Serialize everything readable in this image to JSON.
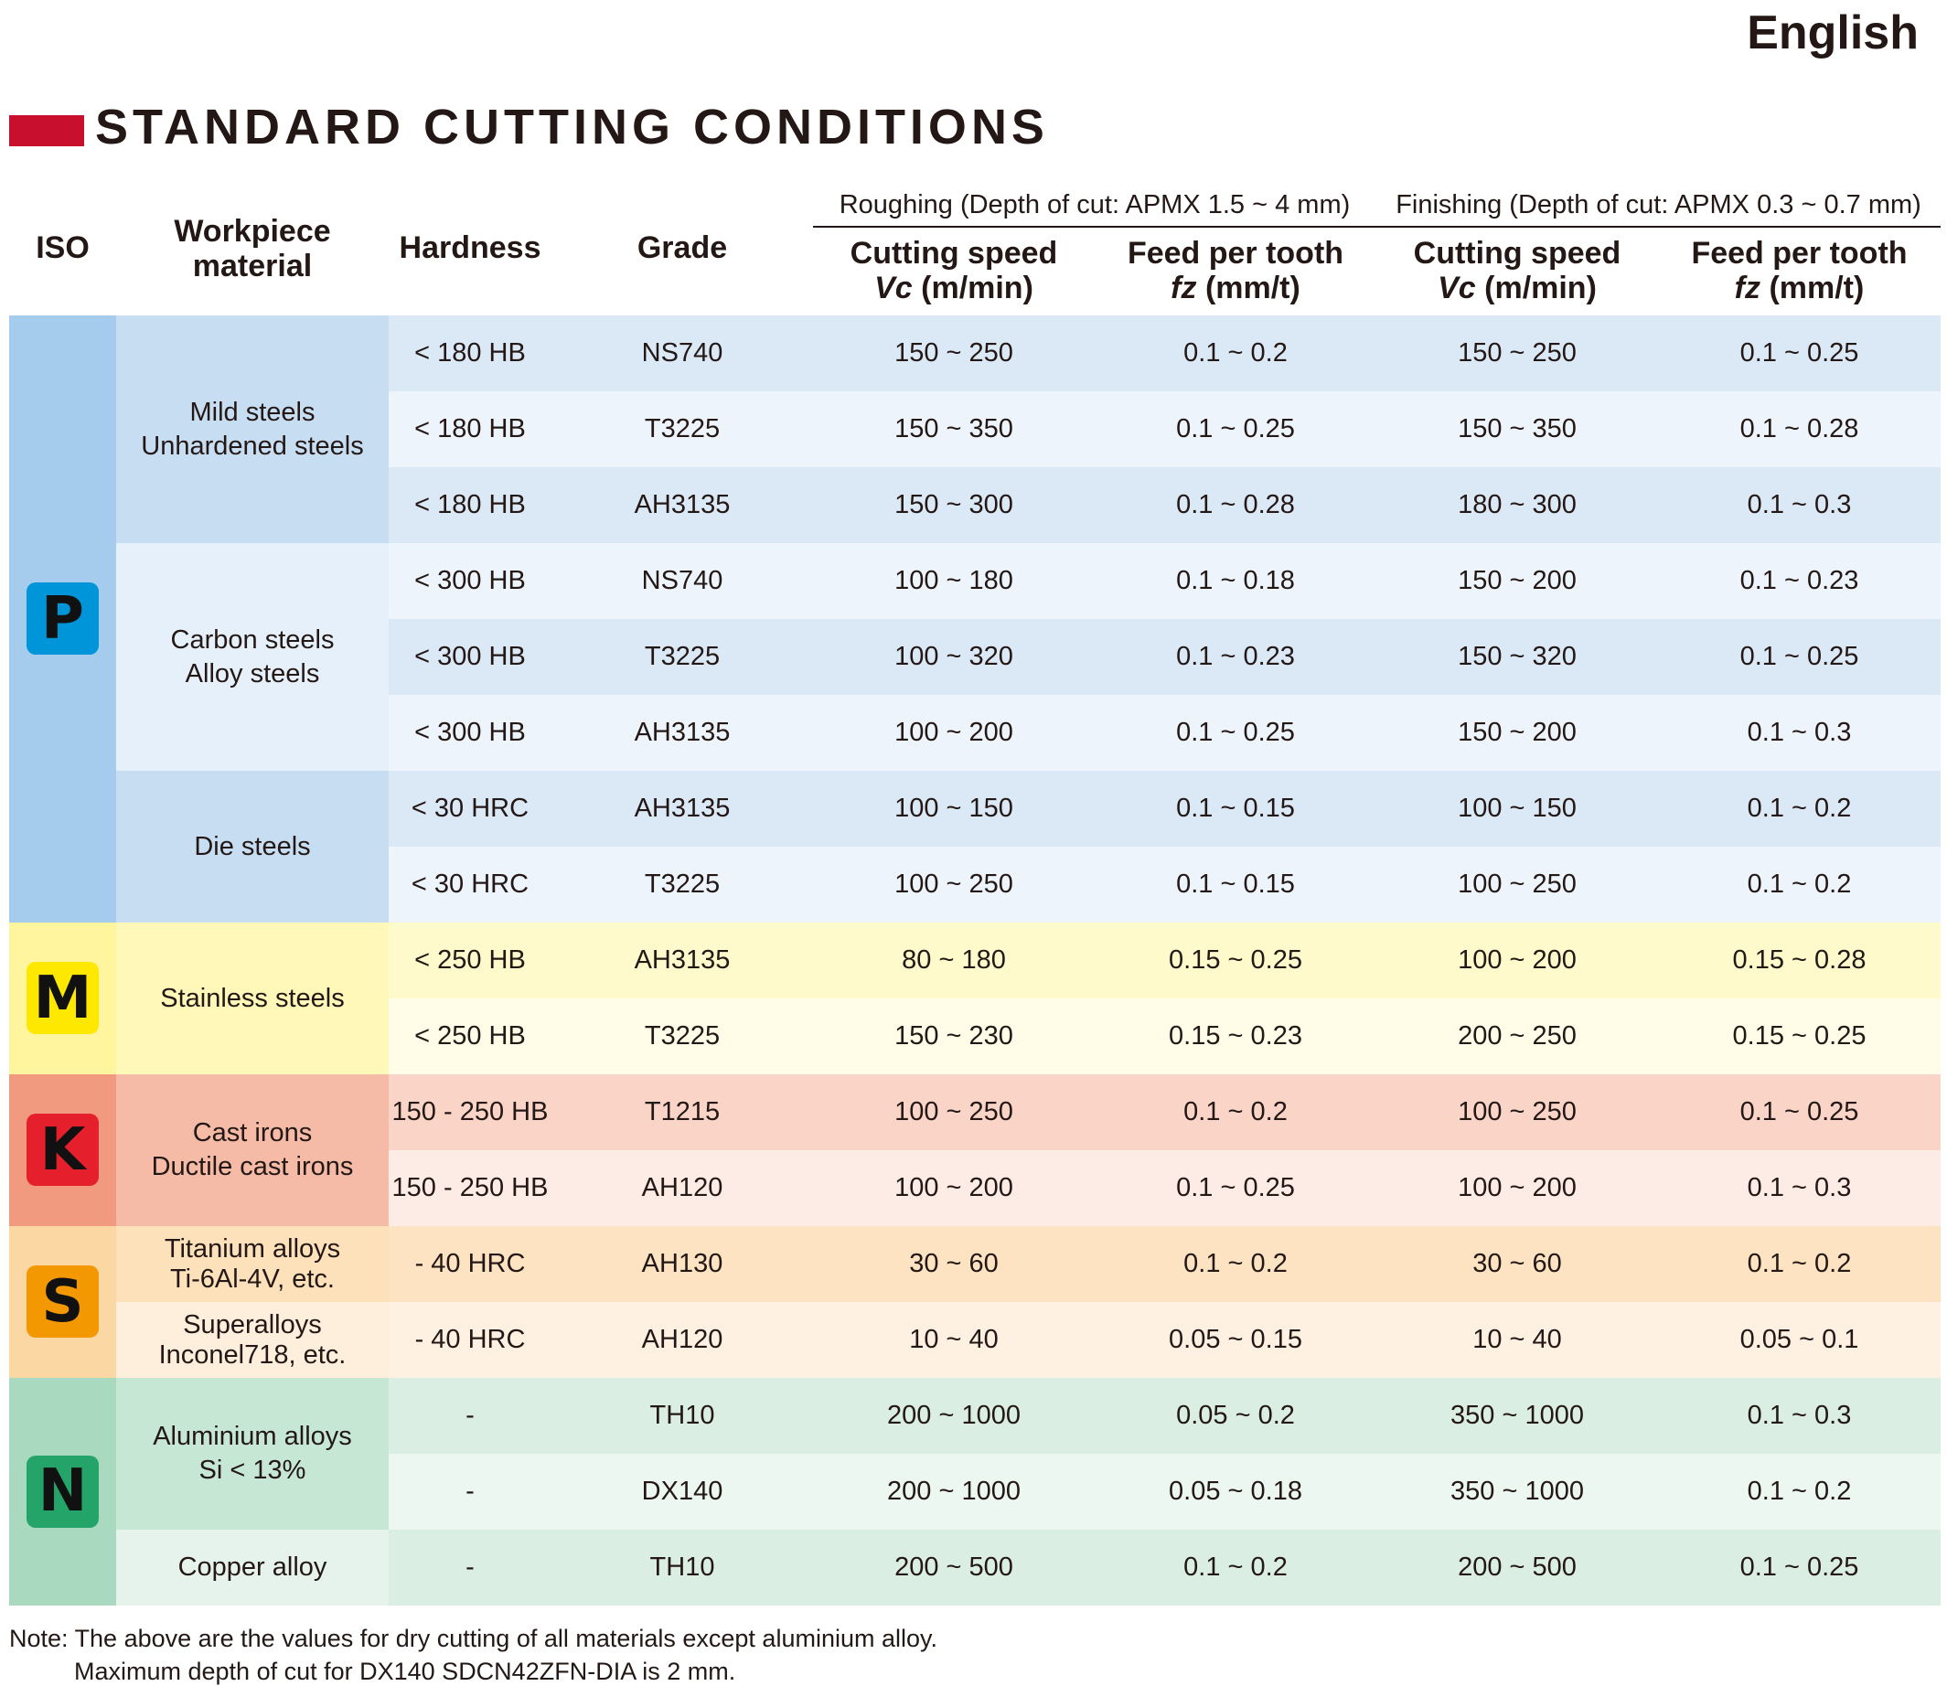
{
  "language": "English",
  "title": "STANDARD CUTTING CONDITIONS",
  "header": {
    "iso": "ISO",
    "workpiece": "Workpiece\nmaterial",
    "hardness": "Hardness",
    "grade": "Grade",
    "roughing": "Roughing (Depth of cut: APMX 1.5 ~ 4 mm)",
    "finishing": "Finishing (Depth of cut: APMX 0.3 ~ 0.7 mm)",
    "cs_line1": "Cutting speed",
    "cs_line2_sym": "Vc",
    "cs_line2_unit": " (m/min)",
    "fz_line1": "Feed per tooth",
    "fz_line2_sym": "fz",
    "fz_line2_unit": " (mm/t)"
  },
  "colors": {
    "P": {
      "badge": "#0094d8",
      "iso": "#a5ccec",
      "mat": "#c7ddf2",
      "mat_alt": "#e6f0fa",
      "row_dark": "#dbe8f6",
      "row_light": "#edf4fb"
    },
    "M": {
      "badge": "#ffe800",
      "iso": "#fff59f",
      "mat": "#fff8b9",
      "row_dark": "#fffacb",
      "row_light": "#fffde8"
    },
    "K": {
      "badge": "#e5202c",
      "iso": "#f19a80",
      "mat": "#f6bba6",
      "row_dark": "#fad5c7",
      "row_light": "#fdece5"
    },
    "S": {
      "badge": "#f39800",
      "iso": "#fbd7a4",
      "mat": "#fde1bb",
      "mat_alt": "#feefdc",
      "row_dark": "#fde3c2",
      "row_light": "#fef1e2"
    },
    "N": {
      "badge": "#24a469",
      "iso": "#a9d9bf",
      "mat": "#c6e7d4",
      "mat_alt": "#e6f3ec",
      "row_dark": "#dbeee3",
      "row_light": "#edf7f1"
    }
  },
  "groups": [
    {
      "iso": "P",
      "materials": [
        {
          "name": "Mild steels\nUnhardened steels",
          "rows": [
            {
              "hardness": "< 180 HB",
              "grade": "NS740",
              "r_vc": "150 ~ 250",
              "r_fz": "0.1 ~ 0.2",
              "f_vc": "150 ~ 250",
              "f_fz": "0.1 ~ 0.25"
            },
            {
              "hardness": "< 180 HB",
              "grade": "T3225",
              "r_vc": "150 ~ 350",
              "r_fz": "0.1 ~ 0.25",
              "f_vc": "150 ~ 350",
              "f_fz": "0.1 ~ 0.28"
            },
            {
              "hardness": "< 180 HB",
              "grade": "AH3135",
              "r_vc": "150 ~ 300",
              "r_fz": "0.1 ~ 0.28",
              "f_vc": "180 ~ 300",
              "f_fz": "0.1 ~ 0.3"
            }
          ]
        },
        {
          "name": "Carbon steels\nAlloy steels",
          "rows": [
            {
              "hardness": "< 300 HB",
              "grade": "NS740",
              "r_vc": "100 ~ 180",
              "r_fz": "0.1 ~ 0.18",
              "f_vc": "150 ~ 200",
              "f_fz": "0.1 ~ 0.23"
            },
            {
              "hardness": "< 300 HB",
              "grade": "T3225",
              "r_vc": "100 ~ 320",
              "r_fz": "0.1 ~ 0.23",
              "f_vc": "150 ~ 320",
              "f_fz": "0.1 ~ 0.25"
            },
            {
              "hardness": "< 300 HB",
              "grade": "AH3135",
              "r_vc": "100 ~ 200",
              "r_fz": "0.1 ~ 0.25",
              "f_vc": "150 ~ 200",
              "f_fz": "0.1 ~ 0.3"
            }
          ]
        },
        {
          "name": "Die steels",
          "rows": [
            {
              "hardness": "< 30 HRC",
              "grade": "AH3135",
              "r_vc": "100 ~ 150",
              "r_fz": "0.1 ~ 0.15",
              "f_vc": "100 ~ 150",
              "f_fz": "0.1 ~ 0.2"
            },
            {
              "hardness": "< 30 HRC",
              "grade": "T3225",
              "r_vc": "100 ~ 250",
              "r_fz": "0.1 ~ 0.15",
              "f_vc": "100 ~ 250",
              "f_fz": "0.1 ~ 0.2"
            }
          ]
        }
      ]
    },
    {
      "iso": "M",
      "materials": [
        {
          "name": "Stainless steels",
          "rows": [
            {
              "hardness": "< 250 HB",
              "grade": "AH3135",
              "r_vc": "80 ~ 180",
              "r_fz": "0.15 ~ 0.25",
              "f_vc": "100 ~ 200",
              "f_fz": "0.15 ~ 0.28"
            },
            {
              "hardness": "< 250 HB",
              "grade": "T3225",
              "r_vc": "150 ~ 230",
              "r_fz": "0.15 ~ 0.23",
              "f_vc": "200 ~ 250",
              "f_fz": "0.15 ~ 0.25"
            }
          ]
        }
      ]
    },
    {
      "iso": "K",
      "materials": [
        {
          "name": "Cast irons\nDuctile cast irons",
          "rows": [
            {
              "hardness": "150 - 250 HB",
              "grade": "T1215",
              "r_vc": "100 ~ 250",
              "r_fz": "0.1 ~ 0.2",
              "f_vc": "100 ~ 250",
              "f_fz": "0.1 ~ 0.25"
            },
            {
              "hardness": "150 - 250 HB",
              "grade": "AH120",
              "r_vc": "100 ~ 200",
              "r_fz": "0.1 ~ 0.25",
              "f_vc": "100 ~ 200",
              "f_fz": "0.1 ~ 0.3"
            }
          ]
        }
      ]
    },
    {
      "iso": "S",
      "materials": [
        {
          "name": "Titanium alloys\nTi-6Al-4V, etc.",
          "rows": [
            {
              "hardness": "- 40 HRC",
              "grade": "AH130",
              "r_vc": "30 ~ 60",
              "r_fz": "0.1 ~ 0.2",
              "f_vc": "30 ~ 60",
              "f_fz": "0.1 ~ 0.2"
            }
          ]
        },
        {
          "name": "Superalloys\nInconel718, etc.",
          "rows": [
            {
              "hardness": "- 40 HRC",
              "grade": "AH120",
              "r_vc": "10 ~ 40",
              "r_fz": "0.05 ~ 0.15",
              "f_vc": "10 ~ 40",
              "f_fz": "0.05 ~ 0.1"
            }
          ]
        }
      ]
    },
    {
      "iso": "N",
      "materials": [
        {
          "name": "Aluminium alloys\nSi < 13%",
          "rows": [
            {
              "hardness": "-",
              "grade": "TH10",
              "r_vc": "200 ~ 1000",
              "r_fz": "0.05 ~ 0.2",
              "f_vc": "350 ~ 1000",
              "f_fz": "0.1 ~ 0.3"
            },
            {
              "hardness": "-",
              "grade": "DX140",
              "r_vc": "200 ~ 1000",
              "r_fz": "0.05 ~ 0.18",
              "f_vc": "350 ~ 1000",
              "f_fz": "0.1 ~ 0.2"
            }
          ]
        },
        {
          "name": "Copper alloy",
          "rows": [
            {
              "hardness": "-",
              "grade": "TH10",
              "r_vc": "200 ~ 500",
              "r_fz": "0.1 ~ 0.2",
              "f_vc": "200 ~ 500",
              "f_fz": "0.1 ~ 0.25"
            }
          ]
        }
      ]
    }
  ],
  "notes": [
    "Note: The above are the values for dry cutting of all materials except aluminium alloy.",
    "Maximum depth of cut for DX140 SDCN42ZFN-DIA is 2 mm."
  ]
}
